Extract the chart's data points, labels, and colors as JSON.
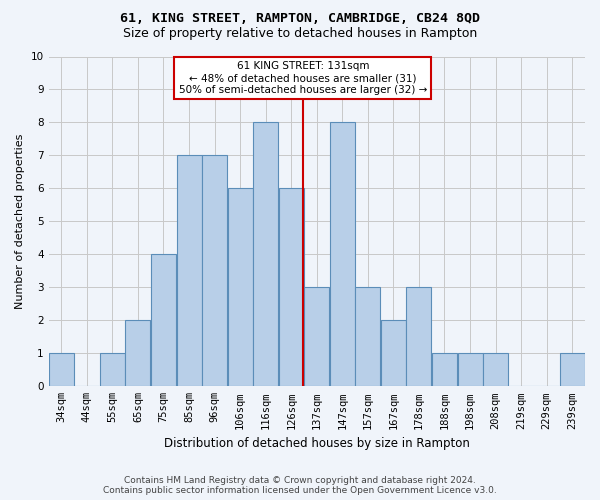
{
  "title": "61, KING STREET, RAMPTON, CAMBRIDGE, CB24 8QD",
  "subtitle": "Size of property relative to detached houses in Rampton",
  "xlabel": "Distribution of detached houses by size in Rampton",
  "ylabel": "Number of detached properties",
  "footer_line1": "Contains HM Land Registry data © Crown copyright and database right 2024.",
  "footer_line2": "Contains public sector information licensed under the Open Government Licence v3.0.",
  "categories": [
    "34sqm",
    "44sqm",
    "55sqm",
    "65sqm",
    "75sqm",
    "85sqm",
    "96sqm",
    "106sqm",
    "116sqm",
    "126sqm",
    "137sqm",
    "147sqm",
    "157sqm",
    "167sqm",
    "178sqm",
    "188sqm",
    "198sqm",
    "208sqm",
    "219sqm",
    "229sqm",
    "239sqm"
  ],
  "values": [
    1,
    0,
    1,
    2,
    4,
    7,
    7,
    6,
    8,
    6,
    3,
    8,
    3,
    2,
    3,
    1,
    1,
    1,
    0,
    0,
    1
  ],
  "bar_color": "#b8cfe8",
  "bar_edge_color": "#5b8db8",
  "grid_color": "#c8c8c8",
  "vline_x_index": 9,
  "annotation_line_color": "#cc0000",
  "annotation_box_text": "61 KING STREET: 131sqm\n← 48% of detached houses are smaller (31)\n50% of semi-detached houses are larger (32) →",
  "annotation_box_edge_color": "#cc0000",
  "ylim": [
    0,
    10
  ],
  "background_color": "#f0f4fa",
  "title_fontsize": 9.5,
  "subtitle_fontsize": 9,
  "ylabel_fontsize": 8,
  "xlabel_fontsize": 8.5,
  "tick_fontsize": 7.5,
  "ann_fontsize": 7.5,
  "footer_fontsize": 6.5
}
